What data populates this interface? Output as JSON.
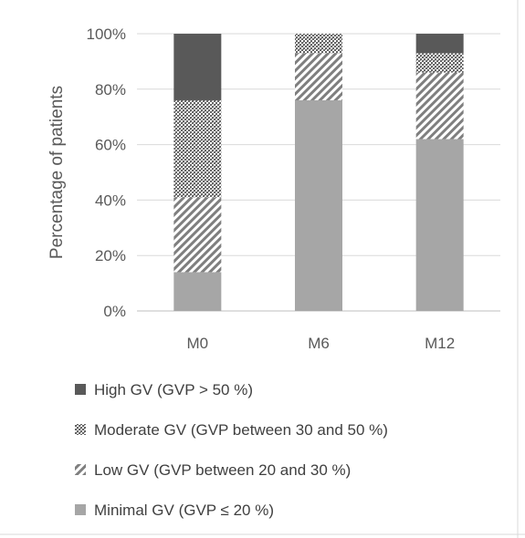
{
  "chart_data": {
    "type": "bar",
    "stacked": true,
    "categories": [
      "M0",
      "M6",
      "M12"
    ],
    "ylabel": "Percentage of patients",
    "ylim": [
      0,
      100
    ],
    "yticks": [
      "0%",
      "20%",
      "40%",
      "60%",
      "80%",
      "100%"
    ],
    "grid": true,
    "legend_position": "bottom",
    "series": [
      {
        "name": "Minimal GV (GVP ≤ 20 %)",
        "values": [
          14,
          76,
          62
        ],
        "color": "#a6a6a6",
        "pattern": "solid"
      },
      {
        "name": "Low GV (GVP between 20 and 30 %)",
        "values": [
          27,
          17,
          24
        ],
        "color": "#7f7f7f",
        "pattern": "diagonal"
      },
      {
        "name": "Moderate GV (GVP between 30 and 50 %)",
        "values": [
          35,
          7,
          7
        ],
        "color": "#7f7f7f",
        "pattern": "crosshatch"
      },
      {
        "name": "High GV (GVP > 50 %)",
        "values": [
          24,
          0,
          7
        ],
        "color": "#595959",
        "pattern": "solid"
      }
    ],
    "legend_order": [
      3,
      2,
      1,
      0
    ]
  }
}
